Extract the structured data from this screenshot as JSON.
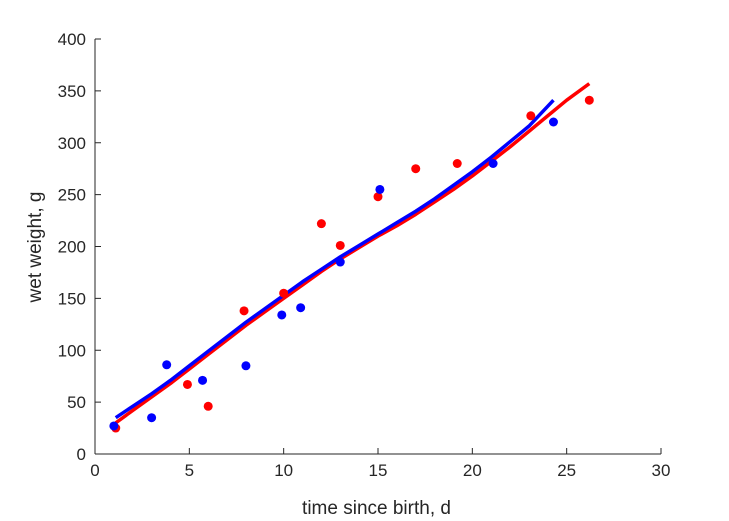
{
  "chart_data": {
    "type": "scatter",
    "title": "",
    "xlabel": "time since birth, d",
    "ylabel": "wet weight, g",
    "xlim": [
      0,
      30
    ],
    "ylim": [
      0,
      400
    ],
    "xticks": [
      0,
      5,
      10,
      15,
      20,
      25,
      30
    ],
    "yticks": [
      0,
      50,
      100,
      150,
      200,
      250,
      300,
      350,
      400
    ],
    "grid": false,
    "legend": "none",
    "series": [
      {
        "kind": "points",
        "color": "#ff0000",
        "x": [
          1.1,
          4.9,
          6.0,
          7.9,
          10.0,
          12.0,
          13.0,
          15.0,
          17.0,
          19.2,
          23.1,
          26.2
        ],
        "y": [
          25,
          67,
          46,
          138,
          155,
          222,
          201,
          248,
          275,
          280,
          326,
          341
        ]
      },
      {
        "kind": "points",
        "color": "#0000ff",
        "x": [
          1.0,
          3.0,
          3.8,
          5.7,
          8.0,
          9.9,
          10.9,
          13.0,
          15.1,
          21.1,
          24.3
        ],
        "y": [
          27,
          35,
          86,
          71,
          85,
          134,
          141,
          185,
          255,
          280,
          320
        ]
      },
      {
        "kind": "line",
        "color": "#ff0000",
        "x": [
          1.1,
          2,
          3,
          4,
          5,
          6,
          7,
          8,
          9,
          10,
          11,
          12,
          13,
          14,
          15,
          16,
          17,
          18,
          19,
          20,
          21,
          22,
          23,
          24,
          25,
          26.2
        ],
        "y": [
          30,
          42,
          55,
          68,
          82,
          96,
          110,
          124,
          137,
          150,
          163,
          176,
          188,
          199,
          210,
          220,
          231,
          243,
          255,
          268,
          282,
          296,
          311,
          326,
          341,
          357
        ]
      },
      {
        "kind": "line",
        "color": "#0000ff",
        "x": [
          1.1,
          2,
          3,
          4,
          5,
          6,
          7,
          8,
          9,
          10,
          11,
          12,
          13,
          14,
          15,
          16,
          17,
          18,
          19,
          20,
          21,
          22,
          23,
          24.3
        ],
        "y": [
          35,
          46,
          58,
          71,
          85,
          99,
          113,
          127,
          140,
          153,
          166,
          178,
          190,
          201,
          212,
          223,
          234,
          246,
          259,
          272,
          286,
          301,
          316,
          341
        ]
      }
    ]
  }
}
